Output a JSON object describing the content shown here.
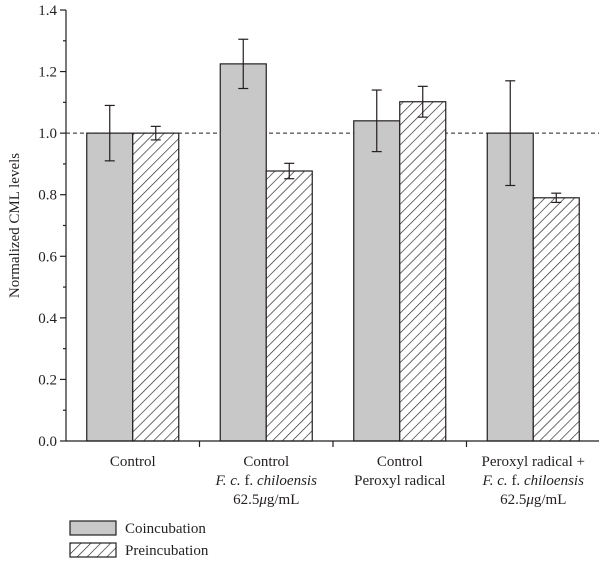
{
  "chart_data": {
    "type": "bar",
    "ylabel": "Normalized CML levels",
    "ylim": [
      0,
      1.4
    ],
    "yticks": [
      0.0,
      0.2,
      0.4,
      0.6,
      0.8,
      1.0,
      1.2,
      1.4
    ],
    "ytick_labels": [
      "0.0",
      "0.2",
      "0.4",
      "0.6",
      "0.8",
      "1.0",
      "1.2",
      "1.4"
    ],
    "reference_line": 1.0,
    "legend_placement": "bottom-left",
    "categories": [
      [
        {
          "text": "Control"
        }
      ],
      [
        {
          "text": "Control"
        },
        {
          "parts": [
            {
              "t": "F. c.",
              "i": true
            },
            {
              "t": " f. ",
              "i": false
            },
            {
              "t": "chiloensis",
              "i": true
            }
          ]
        },
        {
          "parts": [
            {
              "t": "62.5",
              "i": false
            },
            {
              "t": "μ",
              "i": true
            },
            {
              "t": "g/mL",
              "i": false
            }
          ]
        }
      ],
      [
        {
          "text": "Control"
        },
        {
          "text": "Peroxyl radical"
        }
      ],
      [
        {
          "text": "Peroxyl radical +"
        },
        {
          "parts": [
            {
              "t": "F. c.",
              "i": true
            },
            {
              "t": " f. ",
              "i": false
            },
            {
              "t": "chiloensis",
              "i": true
            }
          ]
        },
        {
          "parts": [
            {
              "t": "62.5",
              "i": false
            },
            {
              "t": "μ",
              "i": true
            },
            {
              "t": "g/mL",
              "i": false
            }
          ]
        }
      ]
    ],
    "series": [
      {
        "name": "Coincubation",
        "values": [
          1.0,
          1.225,
          1.04,
          1.0
        ],
        "errors": [
          0.09,
          0.08,
          0.1,
          0.17
        ],
        "color": "#c8c8c8",
        "pattern": "solid"
      },
      {
        "name": "Preincubation",
        "values": [
          1.0,
          0.877,
          1.102,
          0.79
        ],
        "errors": [
          0.022,
          0.025,
          0.05,
          0.015
        ],
        "color": "#ffffff",
        "pattern": "hatch"
      }
    ]
  }
}
